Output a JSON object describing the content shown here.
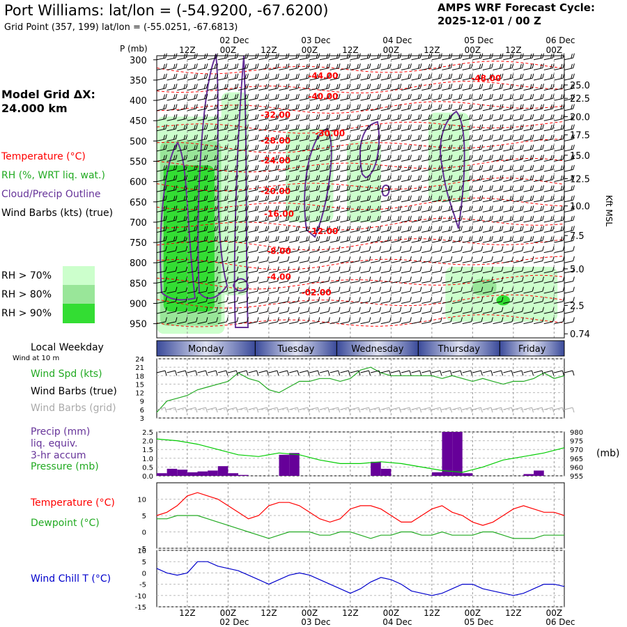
{
  "header": {
    "title": "Port Williams:  lat/lon = (-54.9200, -67.6200)",
    "subtitle": "Grid Point (357, 199) lat/lon = (-55.0251, -67.6813)",
    "cycle_line1": "AMPS WRF Forecast Cycle:",
    "cycle_line2": "2025-12-01 / 00  Z",
    "grid_line1": "Model Grid ΔX:",
    "grid_line2": " 24.000 km"
  },
  "legend": {
    "temperature": "Temperature (°C)",
    "rh": "RH (%, WRT liq. wat.)",
    "cloud": "Cloud/Precip Outline",
    "wind": "Wind Barbs (kts) (true)",
    "rh70": "RH > 70%",
    "rh80": "RH > 80%",
    "rh90": "RH > 90%"
  },
  "colors": {
    "temperature": "#ff0000",
    "rh": "#33cc33",
    "cloud": "#663399",
    "rh70": "#ccffcc",
    "rh80": "#99e699",
    "rh90": "#33dd33",
    "precip": "#660099",
    "pressure": "#00cc00",
    "windchill": "#0000cc",
    "grid_wind": "#aaaaaa"
  },
  "panels": {
    "weekday_title": "Local Weekday",
    "wind_at": "Wind at 10 m",
    "wind_spd": "Wind Spd (kts)",
    "wind_true": "Wind Barbs (true)",
    "wind_grid": "Wind Barbs (grid)",
    "precip1": "Precip (mm)",
    "precip2": "liq. equiv.",
    "precip3": "3-hr accum",
    "pressure": "Pressure (mb)",
    "pressure_unit": "(mb)",
    "temp": "Temperature (°C)",
    "dewpoint": "Dewpoint (°C)",
    "windchill": "Wind Chill T (°C)"
  },
  "chart_data": {
    "type": "line",
    "title": "Port Williams:  lat/lon = (-54.9200, -67.6200)",
    "x_hours": [
      0,
      120
    ],
    "time_ticks": [
      {
        "h": 9,
        "top": "12Z",
        "bottom": ""
      },
      {
        "h": 21,
        "top": "00Z",
        "bottom": "02 Dec"
      },
      {
        "h": 33,
        "top": "12Z",
        "bottom": ""
      },
      {
        "h": 45,
        "top": "00Z",
        "bottom": "03 Dec"
      },
      {
        "h": 57,
        "top": "12Z",
        "bottom": ""
      },
      {
        "h": 69,
        "top": "00Z",
        "bottom": "04 Dec"
      },
      {
        "h": 81,
        "top": "12Z",
        "bottom": ""
      },
      {
        "h": 93,
        "top": "00Z",
        "bottom": "05 Dec"
      },
      {
        "h": 105,
        "top": "12Z",
        "bottom": ""
      },
      {
        "h": 117,
        "top": "00Z",
        "bottom": "06 Dec"
      }
    ],
    "sounding": {
      "ylabel": "P (mb)",
      "right_label": "Kft MSL",
      "p_range": [
        300,
        975
      ],
      "p_ticks": [
        "300",
        "350",
        "400",
        "450",
        "500",
        "550",
        "600",
        "650",
        "700",
        "750",
        "800",
        "850",
        "900",
        "950"
      ],
      "kft_ticks": [
        {
          "label": "25.0",
          "p": 362
        },
        {
          "label": "22.5",
          "p": 395
        },
        {
          "label": "20.0",
          "p": 440
        },
        {
          "label": "17.5",
          "p": 485
        },
        {
          "label": "15.0",
          "p": 535
        },
        {
          "label": "12.5",
          "p": 593
        },
        {
          "label": "10.0",
          "p": 660
        },
        {
          "label": "7.5",
          "p": 733
        },
        {
          "label": "5.0",
          "p": 815
        },
        {
          "label": "2.5",
          "p": 905
        },
        {
          "label": "0.74",
          "p": 975
        }
      ],
      "temp_labels": [
        {
          "label": "-44.00",
          "h": 49,
          "p": 347
        },
        {
          "label": "-40.00",
          "h": 49,
          "p": 397
        },
        {
          "label": "-48.00",
          "h": 97,
          "p": 353
        },
        {
          "label": "-32.00",
          "h": 35,
          "p": 443
        },
        {
          "label": "-30.00",
          "h": 51,
          "p": 488
        },
        {
          "label": "-28.00",
          "h": 35,
          "p": 506
        },
        {
          "label": "-24.00",
          "h": 35,
          "p": 555
        },
        {
          "label": "-20.00",
          "h": 35,
          "p": 631
        },
        {
          "label": "-16.00",
          "h": 36,
          "p": 686
        },
        {
          "label": "-12.00",
          "h": 49,
          "p": 729
        },
        {
          "label": "-8.00",
          "h": 36,
          "p": 778
        },
        {
          "label": "-4.00",
          "h": 36,
          "p": 842
        },
        {
          "label": "-02.00",
          "h": 47,
          "p": 880
        }
      ],
      "rh_regions": [
        {
          "level": 70,
          "h0": 0,
          "h1": 20,
          "p0": 440,
          "p1": 975
        },
        {
          "level": 80,
          "h0": 1,
          "h1": 19,
          "p0": 500,
          "p1": 955
        },
        {
          "level": 90,
          "h0": 2,
          "h1": 17,
          "p0": 560,
          "p1": 920
        },
        {
          "level": 70,
          "h0": 19,
          "h1": 27,
          "p0": 380,
          "p1": 880
        },
        {
          "level": 70,
          "h0": 38,
          "h1": 52,
          "p0": 470,
          "p1": 700
        },
        {
          "level": 70,
          "h0": 56,
          "h1": 66,
          "p0": 500,
          "p1": 700
        },
        {
          "level": 70,
          "h0": 80,
          "h1": 92,
          "p0": 430,
          "p1": 650
        },
        {
          "level": 70,
          "h0": 85,
          "h1": 118,
          "p0": 810,
          "p1": 945
        },
        {
          "level": 80,
          "h0": 93,
          "h1": 100,
          "p0": 840,
          "p1": 880
        },
        {
          "level": 90,
          "h0": 100,
          "h1": 104,
          "p0": 880,
          "p1": 905
        }
      ]
    },
    "weekdays": [
      "Monday",
      "Tuesday",
      "Wednesday",
      "Thursday",
      "Friday"
    ],
    "wind": {
      "ylim": [
        3,
        24
      ],
      "yticks": [
        "24",
        "21",
        "18",
        "15",
        "12",
        "9",
        "6",
        "3"
      ],
      "hours": [
        0,
        3,
        6,
        9,
        12,
        15,
        18,
        21,
        24,
        27,
        30,
        33,
        36,
        39,
        42,
        45,
        48,
        51,
        54,
        57,
        60,
        63,
        66,
        69,
        72,
        75,
        78,
        81,
        84,
        87,
        90,
        93,
        96,
        99,
        102,
        105,
        108,
        111,
        114,
        117,
        120
      ],
      "speed": [
        5,
        9,
        10,
        11,
        13,
        14,
        15,
        16,
        19,
        17,
        16,
        13,
        12,
        14,
        16,
        16,
        17,
        17,
        16,
        17,
        20,
        21,
        19,
        18,
        18,
        18,
        18,
        18,
        17,
        18,
        17,
        16,
        17,
        16,
        15,
        16,
        16,
        17,
        19,
        17,
        18
      ]
    },
    "precip_pressure": {
      "precip_ylim": [
        0,
        2.5
      ],
      "precip_ticks": [
        "2.5",
        "2.0",
        "1.5",
        "1.0",
        "0.5",
        "0.0"
      ],
      "pressure_ylim": [
        955,
        980
      ],
      "pressure_ticks": [
        "980",
        "975",
        "970",
        "965",
        "960",
        "955"
      ],
      "precip_bars": [
        {
          "h": 0,
          "v": 0.15
        },
        {
          "h": 3,
          "v": 0.4
        },
        {
          "h": 6,
          "v": 0.35
        },
        {
          "h": 9,
          "v": 0.2
        },
        {
          "h": 12,
          "v": 0.25
        },
        {
          "h": 15,
          "v": 0.3
        },
        {
          "h": 18,
          "v": 0.55
        },
        {
          "h": 21,
          "v": 0.15
        },
        {
          "h": 24,
          "v": 0.05
        },
        {
          "h": 36,
          "v": 1.2
        },
        {
          "h": 39,
          "v": 1.3
        },
        {
          "h": 63,
          "v": 0.8
        },
        {
          "h": 66,
          "v": 0.4
        },
        {
          "h": 81,
          "v": 0.2
        },
        {
          "h": 84,
          "v": 2.5
        },
        {
          "h": 87,
          "v": 2.5
        },
        {
          "h": 90,
          "v": 0.15
        },
        {
          "h": 108,
          "v": 0.1
        },
        {
          "h": 111,
          "v": 0.3
        }
      ],
      "pressure_hours": [
        0,
        6,
        12,
        18,
        24,
        30,
        36,
        42,
        48,
        54,
        60,
        66,
        72,
        78,
        84,
        90,
        96,
        102,
        108,
        114,
        120
      ],
      "pressure": [
        976,
        975,
        973,
        970,
        967,
        966,
        968,
        967,
        964,
        962,
        962,
        963,
        962,
        960,
        958,
        957,
        960,
        964,
        966,
        968,
        971
      ]
    },
    "temperature": {
      "ylim": [
        -5,
        15
      ],
      "yticks": [
        "10",
        "5",
        "0",
        "-5"
      ],
      "hours": [
        0,
        3,
        6,
        9,
        12,
        15,
        18,
        21,
        24,
        27,
        30,
        33,
        36,
        39,
        42,
        45,
        48,
        51,
        54,
        57,
        60,
        63,
        66,
        69,
        72,
        75,
        78,
        81,
        84,
        87,
        90,
        93,
        96,
        99,
        102,
        105,
        108,
        111,
        114,
        117,
        120
      ],
      "temp": [
        5,
        6,
        8,
        11,
        12,
        11,
        10,
        8,
        6,
        4,
        5,
        8,
        9,
        9,
        8,
        6,
        4,
        3,
        4,
        7,
        8,
        8,
        7,
        5,
        3,
        3,
        5,
        7,
        8,
        6,
        5,
        3,
        2,
        3,
        5,
        7,
        8,
        7,
        6,
        6,
        5
      ],
      "dewpoint": [
        4,
        4,
        5,
        5,
        5,
        4,
        3,
        2,
        1,
        0,
        -1,
        -2,
        -1,
        0,
        0,
        0,
        -1,
        -1,
        0,
        0,
        -1,
        -2,
        -1,
        -1,
        0,
        0,
        -1,
        -1,
        0,
        -1,
        -1,
        -1,
        0,
        0,
        -1,
        -2,
        -2,
        -2,
        -1,
        -1,
        -1
      ]
    },
    "windchill": {
      "ylim": [
        -15,
        10
      ],
      "yticks": [
        "10",
        "5",
        "0",
        "-5",
        "-10",
        "-15"
      ],
      "hours": [
        0,
        3,
        6,
        9,
        12,
        15,
        18,
        21,
        24,
        27,
        30,
        33,
        36,
        39,
        42,
        45,
        48,
        51,
        54,
        57,
        60,
        63,
        66,
        69,
        72,
        75,
        78,
        81,
        84,
        87,
        90,
        93,
        96,
        99,
        102,
        105,
        108,
        111,
        114,
        117,
        120
      ],
      "values": [
        2,
        0,
        -1,
        0,
        5,
        5,
        3,
        2,
        1,
        -1,
        -3,
        -5,
        -3,
        -1,
        0,
        -1,
        -3,
        -5,
        -7,
        -9,
        -7,
        -4,
        -2,
        -3,
        -5,
        -8,
        -9,
        -10,
        -9,
        -7,
        -5,
        -5,
        -7,
        -8,
        -9,
        -10,
        -9,
        -7,
        -5,
        -5,
        -6
      ]
    }
  }
}
